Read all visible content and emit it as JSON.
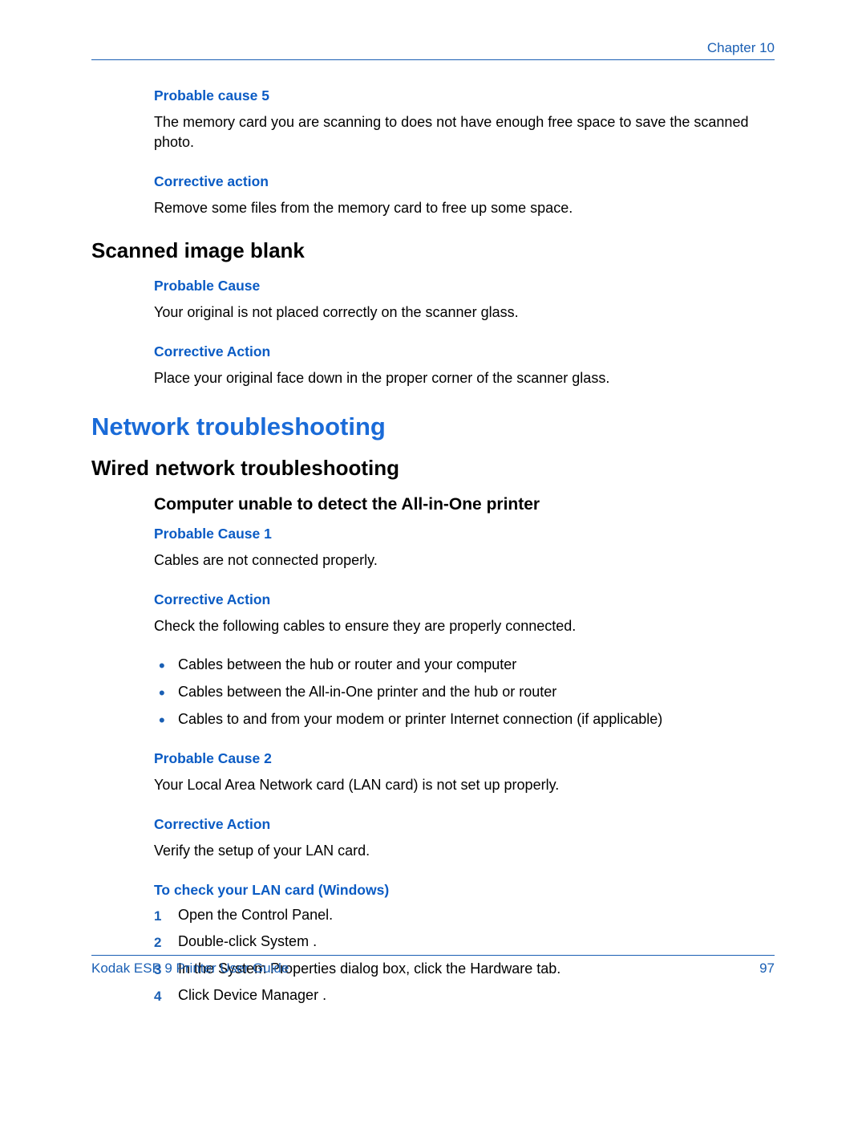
{
  "colors": {
    "accent_blue": "#1a5fb4",
    "heading_blue": "#1a6bd8",
    "sub_blue": "#0a5bc4",
    "text_black": "#000000",
    "background": "#ffffff",
    "rule": "#1a5fb4"
  },
  "type": "document-page",
  "header": {
    "chapter": "Chapter 10"
  },
  "sections": {
    "pc5": {
      "title": "Probable cause 5",
      "text": "The memory card you are scanning to does not have enough free space to save the scanned photo."
    },
    "ca5": {
      "title": "Corrective action",
      "text": "Remove some files from the memory card to free up some space."
    },
    "scanned_blank": {
      "title": "Scanned image blank"
    },
    "sb_pc": {
      "title": "Probable Cause",
      "text": "Your original is not placed correctly on the scanner glass."
    },
    "sb_ca": {
      "title": "Corrective Action",
      "text": "Place your original face down in the proper corner of the scanner glass."
    },
    "net_h1": {
      "title": "Network troubleshooting"
    },
    "wired_h2": {
      "title": "Wired network troubleshooting"
    },
    "unable_h3": {
      "title": "Computer unable to detect the All-in-One printer"
    },
    "u_pc1": {
      "title": "Probable Cause 1",
      "text": "Cables are not connected properly."
    },
    "u_ca1": {
      "title": "Corrective Action",
      "text": "Check the following cables to ensure they are properly connected."
    },
    "cable_bullets": [
      "Cables between the hub or router and your computer",
      "Cables between the All-in-One printer and the hub or router",
      "Cables to and from your modem or printer Internet connection (if applicable)"
    ],
    "u_pc2": {
      "title": "Probable Cause 2",
      "text": "Your Local Area Network card (LAN card) is not set up properly."
    },
    "u_ca2": {
      "title": "Corrective Action",
      "text": "Verify the setup of your LAN card."
    },
    "lan_check": {
      "title": "To check your LAN card (Windows)"
    },
    "lan_steps": {
      "s1": "Open the Control Panel.",
      "s2a": "Double-click ",
      "s2b": "System",
      "s2c": " .",
      "s3a": "In the ",
      "s3b": "System Properties",
      "s3c": "   dialog box, click the Hardware tab.",
      "s4a": "Click ",
      "s4b": "Device Manager",
      "s4c": " ."
    }
  },
  "footer": {
    "guide": "Kodak ESP 9 Printer User Guide",
    "page": "97"
  }
}
